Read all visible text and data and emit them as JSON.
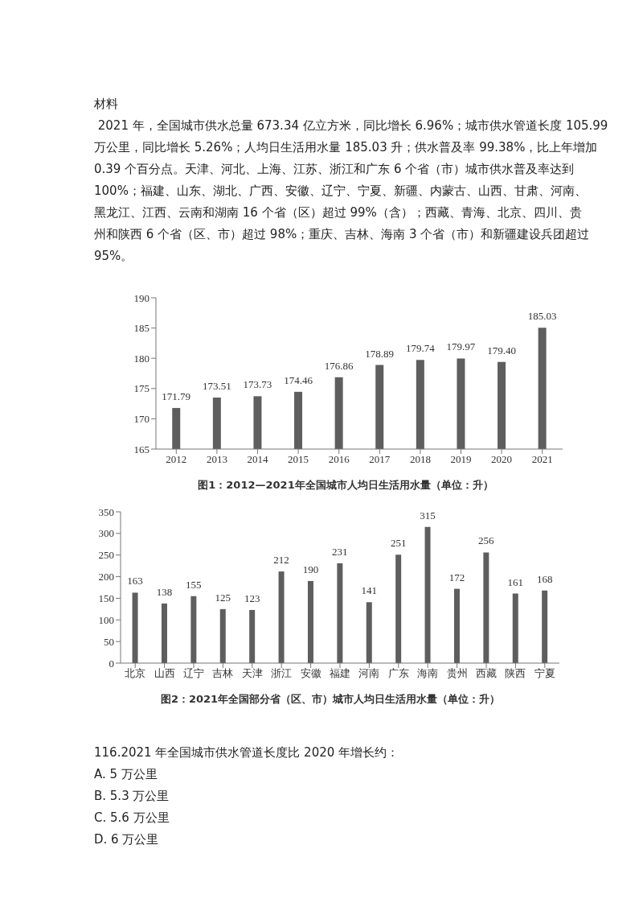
{
  "chart_data": [
    {
      "type": "bar",
      "title": "图1：2012—2021年全国城市人均日生活用水量（单位：升）",
      "annotations": [
        "材料",
        " 2021 年，全国城市供水总量 673.34 亿立方米，同比增长 6.96%；城市供水管道长度 105.99",
        "万公里，同比增长 5.26%；人均日生活用水量 185.03 升；供水普及率 99.38%，比上年增加",
        "0.39 个百分点。天津、河北、上海、江苏、浙江和广东 6 个省（市）城市供水普及率达到",
        "100%；福建、山东、湖北、广西、安徽、辽宁、宁夏、新疆、内蒙古、山西、甘肃、河南、",
        "黑龙江、江西、云南和湖南 16 个省（区）超过 99%（含）；西藏、青海、北京、四川、贵",
        "州和陕西 6 个省（区、市）超过 98%；重庆、吉林、海南 3 个省（市）和新疆建设兵团超过",
        "95%。"
      ],
      "categories": [
        "2012",
        "2013",
        "2014",
        "2015",
        "2016",
        "2017",
        "2018",
        "2019",
        "2020",
        "2021"
      ],
      "values": [
        171.79,
        173.51,
        173.73,
        174.46,
        176.86,
        178.89,
        179.74,
        179.97,
        179.4,
        185.03
      ],
      "value_labels": [
        "171.79",
        "173.51",
        "173.73",
        "174.46",
        "176.86",
        "178.89",
        "179.74",
        "179.97",
        "179.40",
        "185.03"
      ],
      "color": "#5e5e5e",
      "ylim": [
        165,
        190
      ],
      "yticks": [
        165,
        170,
        175,
        180,
        185,
        190
      ],
      "grid": false,
      "legend": false
    },
    {
      "type": "bar",
      "title": "图2：2021年全国部分省（区、市）城市人均日生活用水量（单位：升）",
      "annotations": [
        "116.2021 年全国城市供水管道长度比 2020 年增长约：",
        "A. 5 万公里",
        "B. 5.3 万公里",
        "C. 5.6 万公里",
        "D. 6 万公里"
      ],
      "categories": [
        "北京",
        "山西",
        "辽宁",
        "吉林",
        "天津",
        "浙江",
        "安徽",
        "福建",
        "河南",
        "广东",
        "海南",
        "贵州",
        "西藏",
        "陕西",
        "宁夏"
      ],
      "values": [
        163,
        138,
        155,
        125,
        123,
        212,
        190,
        231,
        141,
        251,
        315,
        172,
        256,
        161,
        168
      ],
      "data_labels": true,
      "color": "#5e5e5e",
      "ylim": [
        0,
        350
      ],
      "yticks": [
        0,
        50,
        100,
        150,
        200,
        250,
        300,
        350
      ],
      "grid": false,
      "legend": false
    }
  ]
}
